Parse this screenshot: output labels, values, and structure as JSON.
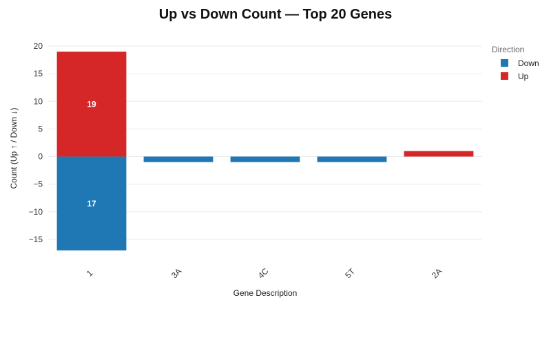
{
  "chart_data": {
    "type": "bar",
    "stacked": true,
    "title": "Up vs Down Count — Top 20 Genes",
    "xlabel": "Gene Description",
    "ylabel": "Count (Up ↑ / Down ↓)",
    "categories": [
      "1",
      "3A",
      "4C",
      "5T",
      "2A"
    ],
    "series": [
      {
        "name": "Down",
        "color": "#1f77b4",
        "values": [
          -17,
          -1,
          -1,
          -1,
          0
        ]
      },
      {
        "name": "Up",
        "color": "#d62728",
        "values": [
          19,
          0,
          0,
          0,
          1
        ]
      }
    ],
    "data_labels": [
      "19",
      "17"
    ],
    "ylim": [
      -17,
      20
    ],
    "yticks": [
      -15,
      -10,
      -5,
      0,
      5,
      10,
      15,
      20
    ],
    "ytick_labels": [
      "−15",
      "−10",
      "−5",
      "0",
      "5",
      "10",
      "15",
      "20"
    ],
    "grid": true,
    "legend": {
      "title": "Direction",
      "position": "right",
      "items": [
        "Down",
        "Up"
      ]
    }
  }
}
